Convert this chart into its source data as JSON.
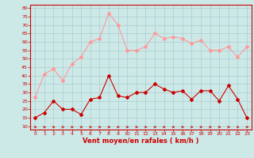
{
  "hours": [
    0,
    1,
    2,
    3,
    4,
    5,
    6,
    7,
    8,
    9,
    10,
    11,
    12,
    13,
    14,
    15,
    16,
    17,
    18,
    19,
    20,
    21,
    22,
    23
  ],
  "rafales": [
    27,
    41,
    44,
    37,
    47,
    51,
    60,
    62,
    77,
    70,
    55,
    55,
    57,
    65,
    62,
    63,
    62,
    59,
    61,
    55,
    55,
    57,
    51,
    57
  ],
  "moyen": [
    15,
    18,
    25,
    20,
    20,
    17,
    26,
    27,
    40,
    28,
    27,
    30,
    30,
    35,
    32,
    30,
    31,
    26,
    31,
    31,
    25,
    34,
    26,
    15
  ],
  "bg_color": "#cce9e8",
  "grid_color": "#aacccc",
  "line_color_rafales": "#ff9999",
  "line_color_moyen": "#cc0000",
  "xlabel": "Vent moyen/en rafales ( km/h )",
  "xlabel_color": "#cc0000",
  "yticks": [
    10,
    15,
    20,
    25,
    30,
    35,
    40,
    45,
    50,
    55,
    60,
    65,
    70,
    75,
    80
  ],
  "ylim": [
    8,
    82
  ],
  "xlim": [
    -0.5,
    23.5
  ],
  "wind_symbol": "↗"
}
